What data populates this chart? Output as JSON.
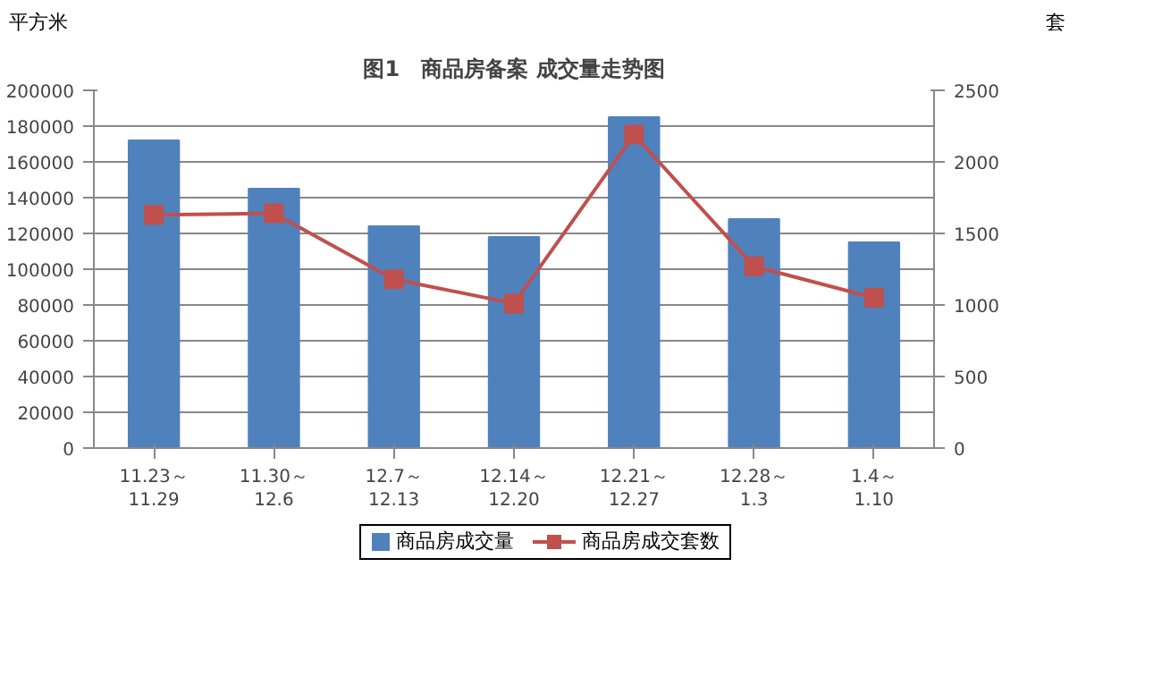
{
  "chart_data": {
    "type": "bar",
    "title": "图1　商品房备案 成交量走势图",
    "ylabel": "平方米",
    "y2label": "套",
    "categories": [
      "11.23～\n11.29",
      "11.30～\n12.6",
      "12.7～\n12.13",
      "12.14～\n12.20",
      "12.21～\n12.27",
      "12.28～\n1.3",
      "1.4～\n1.10"
    ],
    "series": [
      {
        "name": "商品房成交量",
        "color": "#4f81bd",
        "values": [
          172000,
          145000,
          124000,
          118000,
          185000,
          128000,
          115000
        ]
      },
      {
        "name": "商品房成交套数",
        "type": "line",
        "axis": "y2",
        "color": "#c0504d",
        "marker": "square",
        "values": [
          1630,
          1640,
          1180,
          1010,
          2190,
          1270,
          1050
        ]
      }
    ],
    "ylim": [
      0,
      200000
    ],
    "yticks": [
      0,
      20000,
      40000,
      60000,
      80000,
      100000,
      120000,
      140000,
      160000,
      180000,
      200000
    ],
    "y2lim": [
      0,
      2500
    ],
    "y2ticks": [
      0,
      500,
      1000,
      1500,
      2000,
      2500
    ],
    "grid": "y",
    "legend": "bottom"
  }
}
